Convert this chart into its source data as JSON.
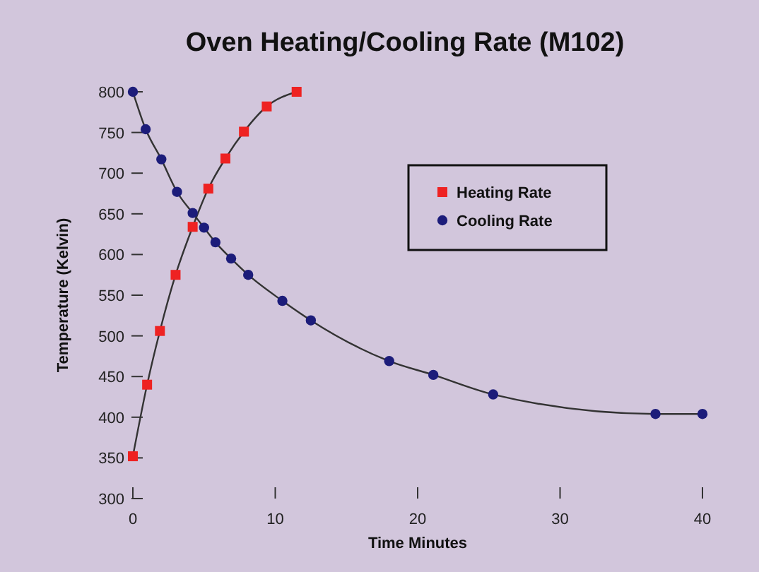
{
  "chart_data": {
    "type": "line",
    "title": "Oven Heating/Cooling Rate (M102)",
    "xlabel": "Time Minutes",
    "ylabel": "Temperature (Kelvin)",
    "xlim": [
      0,
      40
    ],
    "xticks": [
      0,
      10,
      20,
      30,
      40
    ],
    "ylim": [
      300,
      800
    ],
    "yticks": [
      300,
      350,
      400,
      450,
      500,
      550,
      600,
      650,
      700,
      750,
      800
    ],
    "grid": false,
    "legend": "top right",
    "line_style": "solid",
    "series": [
      {
        "name": "Heating Rate",
        "color": "#ee2222",
        "marker": "square",
        "x": [
          0,
          1,
          1.9,
          3,
          4.2,
          5.3,
          6.5,
          7.8,
          9.4,
          11.5
        ],
        "values": [
          352,
          440,
          506,
          575,
          634,
          681,
          718,
          751,
          782,
          800
        ]
      },
      {
        "name": "Cooling Rate",
        "color": "#1c1c7a",
        "marker": "circle",
        "x": [
          0,
          0.9,
          2,
          3.1,
          4.2,
          5,
          5.8,
          6.9,
          8.1,
          10.5,
          12.5,
          18,
          21.1,
          25.3,
          36.7,
          40
        ],
        "values": [
          800,
          754,
          717,
          677,
          651,
          633,
          615,
          595,
          575,
          543,
          519,
          469,
          452,
          428,
          404,
          404
        ]
      }
    ]
  }
}
